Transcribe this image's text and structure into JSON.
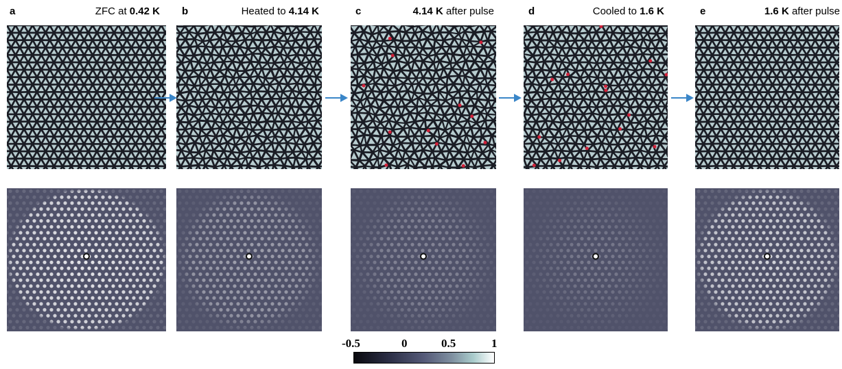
{
  "panels": [
    {
      "letter": "a",
      "title_pre": "ZFC at ",
      "title_bold": "0.42 K",
      "title_post": ""
    },
    {
      "letter": "b",
      "title_pre": "Heated to ",
      "title_bold": "4.14 K",
      "title_post": ""
    },
    {
      "letter": "c",
      "title_pre": "",
      "title_bold": "4.14 K",
      "title_post": " after pulse"
    },
    {
      "letter": "d",
      "title_pre": "Cooled to ",
      "title_bold": "1.6 K",
      "title_post": ""
    },
    {
      "letter": "e",
      "title_pre": "",
      "title_bold": "1.6 K",
      "title_post": " after pulse"
    }
  ],
  "colorbar": {
    "tick_labels": [
      "-0.5",
      "0",
      "0.5",
      "1"
    ],
    "colors": [
      "#0a0a0f",
      "#2b2e45",
      "#555a78",
      "#7f90a0",
      "#a9cbcb",
      "#ffffff"
    ]
  },
  "colors": {
    "arrow": "#3a86c8",
    "lattice_bg": "#1a1c24",
    "lattice_fill": "#b8cdd0",
    "defect": "#d0223a",
    "correlation_bg": "#50526a"
  }
}
